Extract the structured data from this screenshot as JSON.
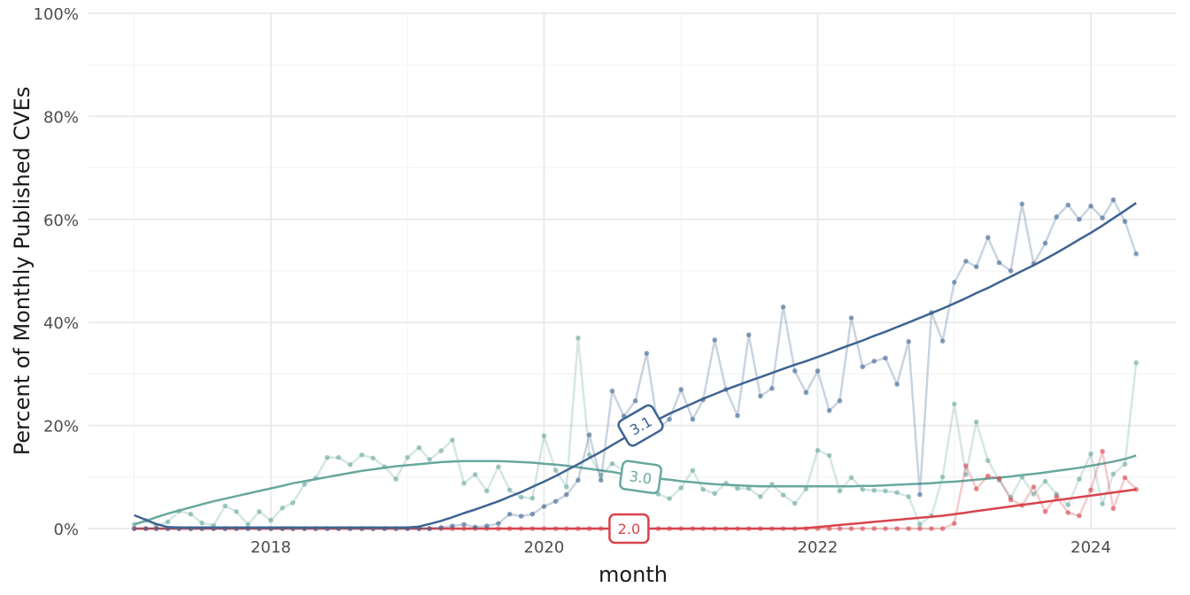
{
  "chart_data": {
    "type": "line",
    "title": "",
    "xlabel": "month",
    "ylabel": "Percent of Monthly Published CVEs",
    "xlim": [
      "2016-09-01",
      "2024-08-15"
    ],
    "ylim": [
      0,
      100
    ],
    "y_ticks": [
      "0%",
      "20%",
      "40%",
      "60%",
      "80%",
      "100%"
    ],
    "x_ticks": [
      "2018",
      "2020",
      "2022",
      "2024"
    ],
    "grid": true,
    "legend": "none",
    "x": [
      "2017-01",
      "2017-02",
      "2017-03",
      "2017-04",
      "2017-05",
      "2017-06",
      "2017-07",
      "2017-08",
      "2017-09",
      "2017-10",
      "2017-11",
      "2017-12",
      "2018-01",
      "2018-02",
      "2018-03",
      "2018-04",
      "2018-05",
      "2018-06",
      "2018-07",
      "2018-08",
      "2018-09",
      "2018-10",
      "2018-11",
      "2018-12",
      "2019-01",
      "2019-02",
      "2019-03",
      "2019-04",
      "2019-05",
      "2019-06",
      "2019-07",
      "2019-08",
      "2019-09",
      "2019-10",
      "2019-11",
      "2019-12",
      "2020-01",
      "2020-02",
      "2020-03",
      "2020-04",
      "2020-05",
      "2020-06",
      "2020-07",
      "2020-08",
      "2020-09",
      "2020-10",
      "2020-11",
      "2020-12",
      "2021-01",
      "2021-02",
      "2021-03",
      "2021-04",
      "2021-05",
      "2021-06",
      "2021-07",
      "2021-08",
      "2021-09",
      "2021-10",
      "2021-11",
      "2021-12",
      "2022-01",
      "2022-02",
      "2022-03",
      "2022-04",
      "2022-05",
      "2022-06",
      "2022-07",
      "2022-08",
      "2022-09",
      "2022-10",
      "2022-11",
      "2022-12",
      "2023-01",
      "2023-02",
      "2023-03",
      "2023-04",
      "2023-05",
      "2023-06",
      "2023-07",
      "2023-08",
      "2023-09",
      "2023-10",
      "2023-11",
      "2023-12",
      "2024-01",
      "2024-02",
      "2024-03",
      "2024-04",
      "2024-05"
    ],
    "series": [
      {
        "label": "3.1",
        "color": "#3e6491",
        "values": [
          0,
          0,
          0,
          0,
          0,
          0,
          0,
          0,
          0,
          0,
          0,
          0,
          0,
          0,
          0,
          0,
          0,
          0,
          0,
          0,
          0,
          0,
          0,
          0,
          0,
          0,
          0,
          0.2,
          0.5,
          0.8,
          0.3,
          0.5,
          1,
          2.8,
          2.4,
          2.8,
          4.3,
          5.3,
          6.6,
          9.4,
          18.2,
          9.4,
          26.7,
          21.8,
          24.8,
          34,
          19.5,
          21.2,
          27,
          21.2,
          25,
          36.6,
          27,
          21.9,
          37.6,
          25.7,
          27.2,
          43,
          30.6,
          26.4,
          30.6,
          22.9,
          24.8,
          40.9,
          31.4,
          32.5,
          33.1,
          28,
          36.3,
          6.6,
          41.9,
          36.4,
          47.8,
          51.9,
          50.8,
          56.5,
          51.6,
          50,
          63,
          51.4,
          55.4,
          60.5,
          62.8,
          60,
          62.6,
          60.3,
          63.8,
          59.6,
          53.3
        ],
        "trend": [
          2.6,
          1.7,
          0.9,
          0.3,
          0.2,
          0.2,
          0.2,
          0.2,
          0.2,
          0.2,
          0.2,
          0.2,
          0.2,
          0.2,
          0.2,
          0.2,
          0.2,
          0.2,
          0.2,
          0.2,
          0.2,
          0.2,
          0.2,
          0.2,
          0.2,
          0.4,
          0.9,
          1.5,
          2.2,
          3,
          3.7,
          4.5,
          5.3,
          6.2,
          7.1,
          8.1,
          9.1,
          10.2,
          11.3,
          12.5,
          13.7,
          14.9,
          16.2,
          17.5,
          18.8,
          20,
          21.2,
          22.3,
          23.3,
          24.3,
          25.2,
          26.1,
          27,
          27.8,
          28.6,
          29.4,
          30.2,
          31,
          31.8,
          32.5,
          33.3,
          34.1,
          34.9,
          35.7,
          36.5,
          37.4,
          38.2,
          39.1,
          40,
          40.9,
          41.8,
          42.7,
          43.7,
          44.7,
          45.7,
          46.7,
          47.8,
          48.9,
          50,
          51.1,
          52.3,
          53.5,
          54.8,
          56.1,
          57.4,
          58.8,
          60.2,
          61.7,
          63.2,
          65
        ]
      },
      {
        "label": "3.0",
        "color": "#67a89e",
        "values": [
          0.8,
          1.6,
          0.6,
          1.3,
          3.4,
          2.8,
          1.1,
          0.6,
          4.4,
          3.3,
          0.8,
          3.3,
          1.6,
          4,
          5,
          8.6,
          9.8,
          13.8,
          13.8,
          12.4,
          14.3,
          13.7,
          12,
          9.6,
          13.8,
          15.7,
          13.4,
          15.1,
          17.2,
          8.8,
          10.5,
          7.3,
          12,
          7.5,
          6.1,
          5.9,
          18,
          11.3,
          8.1,
          37,
          14.3,
          10.3,
          12.6,
          11.3,
          9.6,
          7.7,
          6.7,
          5.8,
          7.9,
          11.3,
          7.6,
          6.8,
          8.8,
          7.8,
          7.8,
          6.2,
          8.6,
          6.5,
          4.9,
          7.7,
          15.2,
          14.2,
          7.3,
          9.9,
          7.6,
          7.4,
          7.3,
          7,
          6.2,
          0.8,
          2.5,
          10,
          24.2,
          10.5,
          20.7,
          13.2,
          9.4,
          6.1,
          10,
          6.7,
          9.2,
          6.7,
          4.6,
          9.6,
          14.5,
          4.8,
          10.6,
          12.5,
          32.2
        ],
        "trend": [
          0.8,
          1.5,
          2.2,
          2.9,
          3.5,
          4.1,
          4.7,
          5.3,
          5.8,
          6.3,
          6.8,
          7.3,
          7.8,
          8.3,
          8.8,
          9.2,
          9.6,
          10,
          10.4,
          10.8,
          11.2,
          11.5,
          11.8,
          12.1,
          12.3,
          12.5,
          12.7,
          12.9,
          13,
          13.1,
          13.1,
          13.1,
          13.1,
          13,
          12.9,
          12.8,
          12.6,
          12.4,
          12.2,
          11.9,
          11.6,
          11.3,
          11,
          10.6,
          10.3,
          10,
          9.7,
          9.5,
          9.2,
          9,
          8.8,
          8.6,
          8.5,
          8.4,
          8.3,
          8.2,
          8.2,
          8.2,
          8.2,
          8.2,
          8.2,
          8.2,
          8.2,
          8.2,
          8.3,
          8.3,
          8.4,
          8.5,
          8.6,
          8.7,
          8.8,
          9,
          9.1,
          9.3,
          9.5,
          9.7,
          9.9,
          10.1,
          10.4,
          10.6,
          10.9,
          11.2,
          11.5,
          11.8,
          12.2,
          12.6,
          13,
          13.5,
          14.2
        ]
      },
      {
        "label": "2.0",
        "color": "#d9434c",
        "values": [
          0,
          0,
          0,
          0,
          0,
          0,
          0,
          0,
          0,
          0,
          0,
          0,
          0,
          0,
          0,
          0,
          0,
          0,
          0,
          0,
          0,
          0,
          0,
          0,
          0,
          0,
          0,
          0,
          0,
          0,
          0,
          0,
          0,
          0,
          0,
          0,
          0,
          0,
          0,
          0,
          0,
          0,
          0,
          0,
          0,
          0,
          0,
          0,
          0,
          0,
          0,
          0,
          0,
          0,
          0,
          0,
          0,
          0,
          0,
          0,
          0,
          0,
          0,
          0,
          0,
          0,
          0,
          0,
          0,
          0,
          0,
          0,
          1,
          12.2,
          7.7,
          10.2,
          9.7,
          5.6,
          4.5,
          8.1,
          3.3,
          6.2,
          3.1,
          2.5,
          7.5,
          15,
          3.9,
          9.9,
          7.6
        ],
        "trend": [
          0,
          0,
          0,
          0,
          0,
          0,
          0,
          0,
          0,
          0,
          0,
          0,
          0,
          0,
          0,
          0,
          0,
          0,
          0,
          0,
          0,
          0,
          0,
          0,
          0,
          0,
          0,
          0,
          0,
          0,
          0,
          0,
          0,
          0,
          0,
          0,
          0,
          0,
          0,
          0,
          0,
          0,
          0,
          0,
          0,
          0,
          0,
          0,
          0,
          0,
          0,
          0,
          0,
          0,
          0,
          0,
          0,
          0,
          0,
          0.1,
          0.3,
          0.5,
          0.7,
          0.9,
          1.1,
          1.3,
          1.5,
          1.7,
          1.9,
          2.1,
          2.3,
          2.5,
          2.8,
          3.1,
          3.4,
          3.7,
          4,
          4.3,
          4.6,
          4.9,
          5.2,
          5.5,
          5.8,
          6.1,
          6.4,
          6.7,
          7,
          7.3,
          7.6,
          8.3,
          9.2
        ]
      }
    ],
    "annotations": [
      {
        "text": "3.1",
        "series": "3.1",
        "x": "2020-09-15",
        "y": 20
      },
      {
        "text": "3.0",
        "series": "3.0",
        "x": "2020-09-15",
        "y": 10
      },
      {
        "text": "2.0",
        "series": "2.0",
        "x": "2020-08-15",
        "y": 0
      }
    ]
  }
}
